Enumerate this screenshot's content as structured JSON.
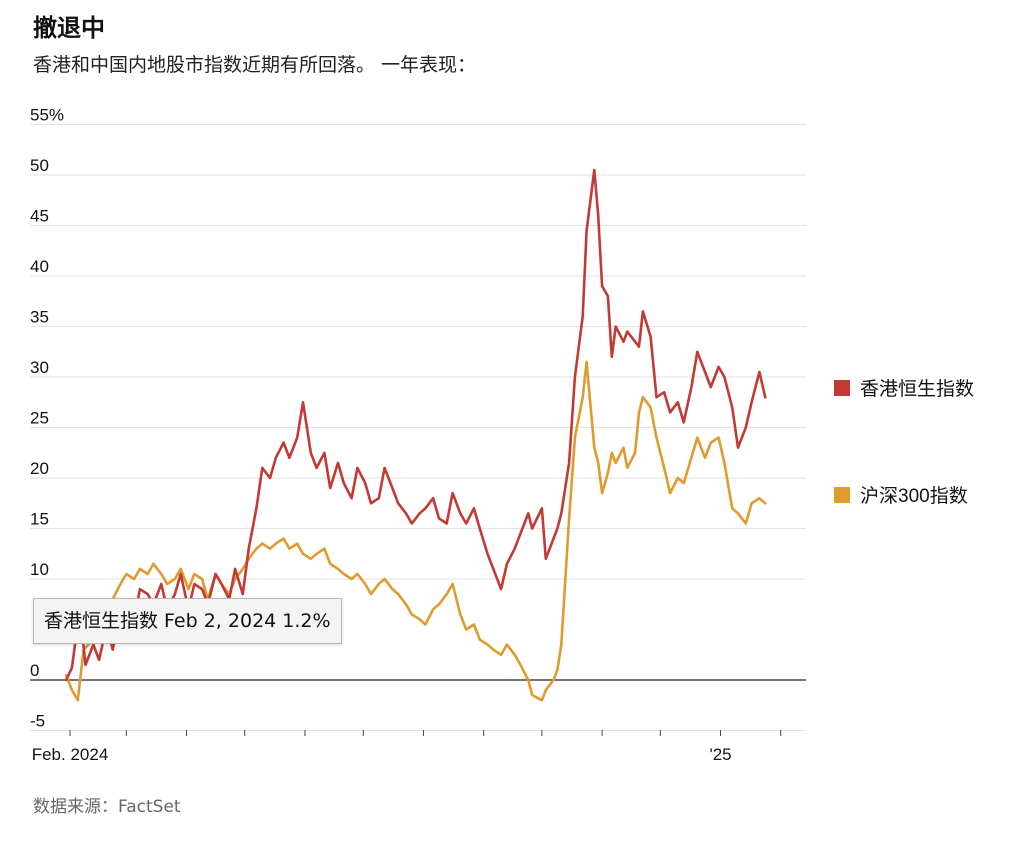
{
  "header": {
    "title": "撤退中",
    "subtitle": "香港和中国内地股市指数近期有所回落。 一年表现："
  },
  "tooltip": {
    "text": "香港恒生指数 Feb 2, 2024 1.2%"
  },
  "source": "数据来源：FactSet",
  "colors": {
    "hsi": "#c23a34",
    "csi": "#e09b2e",
    "grid": "#e2e2e2",
    "zero": "#222222",
    "text": "#121212"
  },
  "chart_data": {
    "type": "line",
    "title": "撤退中",
    "ylim": [
      -5,
      55
    ],
    "xlim": [
      "2024-02-01",
      "2025-02-14"
    ],
    "y_ticks": [
      {
        "value": 55,
        "label": "55%"
      },
      {
        "value": 50,
        "label": "50"
      },
      {
        "value": 45,
        "label": "45"
      },
      {
        "value": 40,
        "label": "40"
      },
      {
        "value": 35,
        "label": "35"
      },
      {
        "value": 30,
        "label": "30"
      },
      {
        "value": 25,
        "label": "25"
      },
      {
        "value": 20,
        "label": "20"
      },
      {
        "value": 15,
        "label": "15"
      },
      {
        "value": 10,
        "label": "10"
      },
      {
        "value": 0,
        "label": "0"
      },
      {
        "value": -5,
        "label": "-5"
      }
    ],
    "x_ticks": [
      {
        "date": "2024-02-01",
        "label": "Feb. 2024"
      },
      {
        "date": "2025-01-01",
        "label": "'25"
      }
    ],
    "grid": true,
    "legend": "right",
    "series": [
      {
        "name": "香港恒生指数",
        "color": "#c23a34",
        "points": [
          [
            "2024-01-30",
            0.0
          ],
          [
            "2024-02-02",
            1.2
          ],
          [
            "2024-02-06",
            7.0
          ],
          [
            "2024-02-09",
            1.5
          ],
          [
            "2024-02-13",
            3.5
          ],
          [
            "2024-02-16",
            2.0
          ],
          [
            "2024-02-20",
            5.5
          ],
          [
            "2024-02-23",
            3.0
          ],
          [
            "2024-02-27",
            7.0
          ],
          [
            "2024-03-01",
            8.0
          ],
          [
            "2024-03-05",
            6.0
          ],
          [
            "2024-03-08",
            9.0
          ],
          [
            "2024-03-12",
            8.5
          ],
          [
            "2024-03-15",
            7.5
          ],
          [
            "2024-03-19",
            9.5
          ],
          [
            "2024-03-22",
            7.0
          ],
          [
            "2024-03-26",
            8.5
          ],
          [
            "2024-03-29",
            10.5
          ],
          [
            "2024-04-02",
            7.0
          ],
          [
            "2024-04-05",
            9.5
          ],
          [
            "2024-04-09",
            9.0
          ],
          [
            "2024-04-12",
            7.5
          ],
          [
            "2024-04-16",
            10.5
          ],
          [
            "2024-04-19",
            9.5
          ],
          [
            "2024-04-23",
            8.0
          ],
          [
            "2024-04-26",
            11.0
          ],
          [
            "2024-04-30",
            8.5
          ],
          [
            "2024-05-03",
            13.0
          ],
          [
            "2024-05-07",
            17.0
          ],
          [
            "2024-05-10",
            21.0
          ],
          [
            "2024-05-14",
            20.0
          ],
          [
            "2024-05-17",
            22.0
          ],
          [
            "2024-05-21",
            23.5
          ],
          [
            "2024-05-24",
            22.0
          ],
          [
            "2024-05-28",
            24.0
          ],
          [
            "2024-05-31",
            27.5
          ],
          [
            "2024-06-04",
            22.5
          ],
          [
            "2024-06-07",
            21.0
          ],
          [
            "2024-06-11",
            22.5
          ],
          [
            "2024-06-14",
            19.0
          ],
          [
            "2024-06-18",
            21.5
          ],
          [
            "2024-06-21",
            19.5
          ],
          [
            "2024-06-25",
            18.0
          ],
          [
            "2024-06-28",
            21.0
          ],
          [
            "2024-07-02",
            19.5
          ],
          [
            "2024-07-05",
            17.5
          ],
          [
            "2024-07-09",
            18.0
          ],
          [
            "2024-07-12",
            21.0
          ],
          [
            "2024-07-16",
            19.0
          ],
          [
            "2024-07-19",
            17.5
          ],
          [
            "2024-07-23",
            16.5
          ],
          [
            "2024-07-26",
            15.5
          ],
          [
            "2024-07-30",
            16.5
          ],
          [
            "2024-08-02",
            17.0
          ],
          [
            "2024-08-06",
            18.0
          ],
          [
            "2024-08-09",
            16.0
          ],
          [
            "2024-08-13",
            15.5
          ],
          [
            "2024-08-16",
            18.5
          ],
          [
            "2024-08-20",
            16.5
          ],
          [
            "2024-08-23",
            15.5
          ],
          [
            "2024-08-27",
            17.0
          ],
          [
            "2024-08-30",
            15.0
          ],
          [
            "2024-09-03",
            12.5
          ],
          [
            "2024-09-06",
            11.0
          ],
          [
            "2024-09-10",
            9.0
          ],
          [
            "2024-09-13",
            11.5
          ],
          [
            "2024-09-17",
            13.0
          ],
          [
            "2024-09-20",
            14.5
          ],
          [
            "2024-09-24",
            16.5
          ],
          [
            "2024-09-26",
            15.0
          ],
          [
            "2024-10-01",
            17.0
          ],
          [
            "2024-10-03",
            12.0
          ],
          [
            "2024-10-07",
            14.0
          ],
          [
            "2024-10-09",
            15.0
          ],
          [
            "2024-10-11",
            16.5
          ],
          [
            "2024-10-15",
            21.5
          ],
          [
            "2024-10-18",
            30.0
          ],
          [
            "2024-10-22",
            36.0
          ],
          [
            "2024-10-24",
            44.5
          ],
          [
            "2024-10-28",
            50.5
          ],
          [
            "2024-10-30",
            46.0
          ],
          [
            "2024-11-01",
            39.0
          ],
          [
            "2024-11-04",
            38.0
          ],
          [
            "2024-11-06",
            32.0
          ],
          [
            "2024-11-08",
            35.0
          ],
          [
            "2024-11-12",
            33.5
          ],
          [
            "2024-11-14",
            34.5
          ],
          [
            "2024-11-18",
            33.5
          ],
          [
            "2024-11-20",
            33.0
          ],
          [
            "2024-11-22",
            36.5
          ],
          [
            "2024-11-26",
            34.0
          ],
          [
            "2024-11-29",
            28.0
          ],
          [
            "2024-12-03",
            28.5
          ],
          [
            "2024-12-06",
            26.5
          ],
          [
            "2024-12-10",
            27.5
          ],
          [
            "2024-12-13",
            25.5
          ],
          [
            "2024-12-17",
            29.0
          ],
          [
            "2024-12-20",
            32.5
          ],
          [
            "2024-12-24",
            30.5
          ],
          [
            "2024-12-27",
            29.0
          ],
          [
            "2024-12-31",
            31.0
          ],
          [
            "2025-01-03",
            30.0
          ],
          [
            "2025-01-07",
            27.0
          ],
          [
            "2025-01-10",
            23.0
          ],
          [
            "2025-01-14",
            25.0
          ],
          [
            "2025-01-17",
            27.5
          ],
          [
            "2025-01-21",
            30.5
          ],
          [
            "2025-01-24",
            28.0
          ]
        ]
      },
      {
        "name": "沪深300指数",
        "color": "#e09b2e",
        "points": [
          [
            "2024-01-30",
            0.5
          ],
          [
            "2024-02-02",
            -1.0
          ],
          [
            "2024-02-05",
            -2.0
          ],
          [
            "2024-02-08",
            3.0
          ],
          [
            "2024-02-13",
            4.0
          ],
          [
            "2024-02-16",
            6.0
          ],
          [
            "2024-02-20",
            7.5
          ],
          [
            "2024-02-23",
            8.0
          ],
          [
            "2024-02-27",
            9.5
          ],
          [
            "2024-03-01",
            10.5
          ],
          [
            "2024-03-05",
            10.0
          ],
          [
            "2024-03-08",
            11.0
          ],
          [
            "2024-03-12",
            10.5
          ],
          [
            "2024-03-15",
            11.5
          ],
          [
            "2024-03-19",
            10.5
          ],
          [
            "2024-03-22",
            9.5
          ],
          [
            "2024-03-26",
            10.0
          ],
          [
            "2024-03-29",
            11.0
          ],
          [
            "2024-04-02",
            9.0
          ],
          [
            "2024-04-05",
            10.5
          ],
          [
            "2024-04-09",
            10.0
          ],
          [
            "2024-04-12",
            8.0
          ],
          [
            "2024-04-16",
            10.5
          ],
          [
            "2024-04-19",
            9.5
          ],
          [
            "2024-04-23",
            8.5
          ],
          [
            "2024-04-26",
            10.0
          ],
          [
            "2024-04-30",
            11.0
          ],
          [
            "2024-05-03",
            12.0
          ],
          [
            "2024-05-07",
            13.0
          ],
          [
            "2024-05-10",
            13.5
          ],
          [
            "2024-05-14",
            13.0
          ],
          [
            "2024-05-17",
            13.5
          ],
          [
            "2024-05-21",
            14.0
          ],
          [
            "2024-05-24",
            13.0
          ],
          [
            "2024-05-28",
            13.5
          ],
          [
            "2024-05-31",
            12.5
          ],
          [
            "2024-06-04",
            12.0
          ],
          [
            "2024-06-07",
            12.5
          ],
          [
            "2024-06-11",
            13.0
          ],
          [
            "2024-06-14",
            11.5
          ],
          [
            "2024-06-18",
            11.0
          ],
          [
            "2024-06-21",
            10.5
          ],
          [
            "2024-06-25",
            10.0
          ],
          [
            "2024-06-28",
            10.5
          ],
          [
            "2024-07-02",
            9.5
          ],
          [
            "2024-07-05",
            8.5
          ],
          [
            "2024-07-09",
            9.5
          ],
          [
            "2024-07-12",
            10.0
          ],
          [
            "2024-07-16",
            9.0
          ],
          [
            "2024-07-19",
            8.5
          ],
          [
            "2024-07-23",
            7.5
          ],
          [
            "2024-07-26",
            6.5
          ],
          [
            "2024-07-30",
            6.0
          ],
          [
            "2024-08-02",
            5.5
          ],
          [
            "2024-08-06",
            7.0
          ],
          [
            "2024-08-09",
            7.5
          ],
          [
            "2024-08-13",
            8.5
          ],
          [
            "2024-08-16",
            9.5
          ],
          [
            "2024-08-20",
            6.5
          ],
          [
            "2024-08-23",
            5.0
          ],
          [
            "2024-08-27",
            5.5
          ],
          [
            "2024-08-30",
            4.0
          ],
          [
            "2024-09-03",
            3.5
          ],
          [
            "2024-09-06",
            3.0
          ],
          [
            "2024-09-10",
            2.5
          ],
          [
            "2024-09-13",
            3.5
          ],
          [
            "2024-09-17",
            2.5
          ],
          [
            "2024-09-20",
            1.5
          ],
          [
            "2024-09-24",
            0.0
          ],
          [
            "2024-09-26",
            -1.5
          ],
          [
            "2024-10-01",
            -2.0
          ],
          [
            "2024-10-03",
            -1.0
          ],
          [
            "2024-10-07",
            0.0
          ],
          [
            "2024-10-09",
            1.0
          ],
          [
            "2024-10-11",
            3.5
          ],
          [
            "2024-10-15",
            16.0
          ],
          [
            "2024-10-18",
            24.0
          ],
          [
            "2024-10-22",
            28.0
          ],
          [
            "2024-10-24",
            31.5
          ],
          [
            "2024-10-28",
            23.0
          ],
          [
            "2024-10-30",
            21.5
          ],
          [
            "2024-11-01",
            18.5
          ],
          [
            "2024-11-04",
            20.5
          ],
          [
            "2024-11-06",
            22.5
          ],
          [
            "2024-11-08",
            21.5
          ],
          [
            "2024-11-12",
            23.0
          ],
          [
            "2024-11-14",
            21.0
          ],
          [
            "2024-11-18",
            22.5
          ],
          [
            "2024-11-20",
            26.5
          ],
          [
            "2024-11-22",
            28.0
          ],
          [
            "2024-11-26",
            27.0
          ],
          [
            "2024-11-29",
            24.0
          ],
          [
            "2024-12-03",
            21.0
          ],
          [
            "2024-12-06",
            18.5
          ],
          [
            "2024-12-10",
            20.0
          ],
          [
            "2024-12-13",
            19.5
          ],
          [
            "2024-12-17",
            22.0
          ],
          [
            "2024-12-20",
            24.0
          ],
          [
            "2024-12-24",
            22.0
          ],
          [
            "2024-12-27",
            23.5
          ],
          [
            "2024-12-31",
            24.0
          ],
          [
            "2025-01-03",
            21.5
          ],
          [
            "2025-01-07",
            17.0
          ],
          [
            "2025-01-10",
            16.5
          ],
          [
            "2025-01-14",
            15.5
          ],
          [
            "2025-01-17",
            17.5
          ],
          [
            "2025-01-21",
            18.0
          ],
          [
            "2025-01-24",
            17.5
          ]
        ]
      }
    ]
  }
}
